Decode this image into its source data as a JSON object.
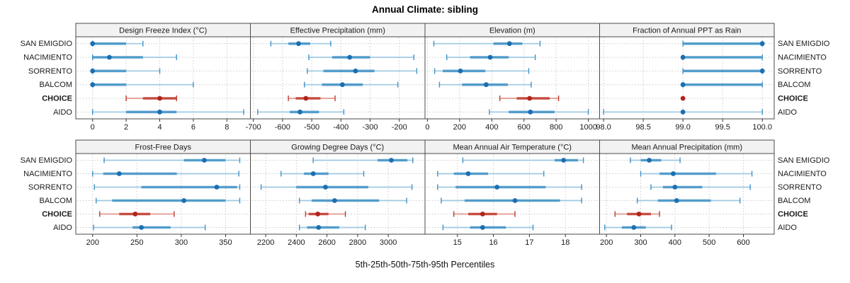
{
  "title": "Annual Climate: sibling",
  "caption": "5th-25th-50th-75th-95th Percentiles",
  "sites": [
    "SAN EMIGDIO",
    "NACIMIENTO",
    "SORRENTO",
    "BALCOM",
    "CHOICE",
    "AIDO"
  ],
  "highlight_site": "CHOICE",
  "colors": {
    "median_dot": "#1b6fb0",
    "iqr_bar": "#4292c6",
    "range_line": "#9ec9e2",
    "highlight_median_dot": "#b0241c",
    "highlight_iqr_bar": "#c0392b",
    "highlight_range_line": "#e2978e",
    "header_bg": "#f2f2f2",
    "panel_border": "#4a4a4a",
    "grid": "#cbcbcb",
    "text": "#1a1a1a"
  },
  "chart_data": [
    {
      "type": "scatter",
      "variant": "percentile-intervals",
      "title": "Design Freeze Index (°C)",
      "row": 0,
      "col": 0,
      "xlim": [
        -1,
        9.4
      ],
      "ticks": [
        0,
        2,
        4,
        6,
        8
      ],
      "tick_labels": [
        "0",
        "2",
        "4",
        "6",
        "8"
      ],
      "percentile_labels": [
        "5th",
        "25th",
        "50th",
        "75th",
        "95th"
      ],
      "series": [
        {
          "name": "SAN EMIGDIO",
          "percentiles": [
            0,
            0,
            0,
            2,
            3
          ]
        },
        {
          "name": "NACIMIENTO",
          "percentiles": [
            0,
            0,
            1,
            3,
            5
          ]
        },
        {
          "name": "SORRENTO",
          "percentiles": [
            0,
            0,
            0,
            2,
            4
          ]
        },
        {
          "name": "BALCOM",
          "percentiles": [
            0,
            0,
            0,
            2,
            6
          ]
        },
        {
          "name": "CHOICE",
          "percentiles": [
            2,
            3,
            4,
            5,
            5
          ]
        },
        {
          "name": "AIDO",
          "percentiles": [
            0,
            2,
            4,
            5,
            9
          ]
        }
      ]
    },
    {
      "type": "scatter",
      "variant": "percentile-intervals",
      "title": "Effective Precipitation (mm)",
      "row": 0,
      "col": 1,
      "xlim": [
        -710,
        -112
      ],
      "ticks": [
        -700,
        -600,
        -500,
        -400,
        -300,
        -200
      ],
      "tick_labels": [
        "-700",
        "-600",
        "-500",
        "-400",
        "-300",
        "-200"
      ],
      "percentile_labels": [
        "5th",
        "25th",
        "50th",
        "75th",
        "95th"
      ],
      "series": [
        {
          "name": "SAN EMIGDIO",
          "percentiles": [
            -640,
            -580,
            -545,
            -505,
            -435
          ]
        },
        {
          "name": "NACIMIENTO",
          "percentiles": [
            -510,
            -430,
            -370,
            -300,
            -150
          ]
        },
        {
          "name": "SORRENTO",
          "percentiles": [
            -515,
            -460,
            -350,
            -285,
            -140
          ]
        },
        {
          "name": "BALCOM",
          "percentiles": [
            -525,
            -465,
            -395,
            -325,
            -205
          ]
        },
        {
          "name": "CHOICE",
          "percentiles": [
            -580,
            -555,
            -520,
            -470,
            -420
          ]
        },
        {
          "name": "AIDO",
          "percentiles": [
            -685,
            -575,
            -540,
            -475,
            -390
          ]
        }
      ]
    },
    {
      "type": "scatter",
      "variant": "percentile-intervals",
      "title": "Elevation (m)",
      "row": 0,
      "col": 2,
      "xlim": [
        -15,
        1070
      ],
      "ticks": [
        0,
        200,
        400,
        600,
        800,
        1000
      ],
      "tick_labels": [
        "0",
        "200",
        "400",
        "600",
        "800",
        "1000"
      ],
      "percentile_labels": [
        "5th",
        "25th",
        "50th",
        "75th",
        "95th"
      ],
      "series": [
        {
          "name": "SAN EMIGDIO",
          "percentiles": [
            40,
            410,
            510,
            590,
            700
          ]
        },
        {
          "name": "NACIMIENTO",
          "percentiles": [
            120,
            265,
            390,
            505,
            670
          ]
        },
        {
          "name": "SORRENTO",
          "percentiles": [
            45,
            95,
            205,
            360,
            630
          ]
        },
        {
          "name": "BALCOM",
          "percentiles": [
            75,
            215,
            365,
            500,
            645
          ]
        },
        {
          "name": "CHOICE",
          "percentiles": [
            450,
            555,
            635,
            760,
            815
          ]
        },
        {
          "name": "AIDO",
          "percentiles": [
            385,
            505,
            640,
            790,
            1000
          ]
        }
      ]
    },
    {
      "type": "scatter",
      "variant": "percentile-intervals",
      "title": "Fraction of Annual PPT as Rain",
      "row": 0,
      "col": 3,
      "xlim": [
        97.95,
        100.15
      ],
      "ticks": [
        98.0,
        98.5,
        99.0,
        99.5,
        100.0
      ],
      "tick_labels": [
        "98.0",
        "98.5",
        "99.0",
        "99.5",
        "100.0"
      ],
      "percentile_labels": [
        "5th",
        "25th",
        "50th",
        "75th",
        "95th"
      ],
      "series": [
        {
          "name": "SAN EMIGDIO",
          "percentiles": [
            99,
            99,
            100,
            100,
            100
          ]
        },
        {
          "name": "NACIMIENTO",
          "percentiles": [
            99,
            99,
            99,
            100,
            100
          ]
        },
        {
          "name": "SORRENTO",
          "percentiles": [
            99,
            99,
            100,
            100,
            100
          ]
        },
        {
          "name": "BALCOM",
          "percentiles": [
            99,
            99,
            99,
            100,
            100
          ]
        },
        {
          "name": "CHOICE",
          "percentiles": [
            99,
            99,
            99,
            99,
            99
          ]
        },
        {
          "name": "AIDO",
          "percentiles": [
            98,
            99,
            99,
            99,
            100
          ]
        }
      ]
    },
    {
      "type": "scatter",
      "variant": "percentile-intervals",
      "title": "Frost-Free Days",
      "row": 1,
      "col": 0,
      "xlim": [
        181,
        378
      ],
      "ticks": [
        200,
        250,
        300,
        350
      ],
      "tick_labels": [
        "200",
        "250",
        "300",
        "350"
      ],
      "percentile_labels": [
        "5th",
        "25th",
        "50th",
        "75th",
        "95th"
      ],
      "series": [
        {
          "name": "SAN EMIGDIO",
          "percentiles": [
            213,
            303,
            326,
            350,
            366
          ]
        },
        {
          "name": "NACIMIENTO",
          "percentiles": [
            200,
            212,
            230,
            295,
            365
          ]
        },
        {
          "name": "SORRENTO",
          "percentiles": [
            202,
            255,
            340,
            363,
            366
          ]
        },
        {
          "name": "BALCOM",
          "percentiles": [
            204,
            222,
            303,
            350,
            366
          ]
        },
        {
          "name": "CHOICE",
          "percentiles": [
            208,
            230,
            248,
            265,
            292
          ]
        },
        {
          "name": "AIDO",
          "percentiles": [
            201,
            245,
            255,
            288,
            327
          ]
        }
      ]
    },
    {
      "type": "scatter",
      "variant": "percentile-intervals",
      "title": "Growing Degree Days (°C)",
      "row": 1,
      "col": 1,
      "xlim": [
        2100,
        3240
      ],
      "ticks": [
        2200,
        2400,
        2600,
        2800,
        3000
      ],
      "tick_labels": [
        "2200",
        "2400",
        "2600",
        "2800",
        "3000"
      ],
      "percentile_labels": [
        "5th",
        "25th",
        "50th",
        "75th",
        "95th"
      ],
      "series": [
        {
          "name": "SAN EMIGDIO",
          "percentiles": [
            2510,
            2930,
            3020,
            3125,
            3160
          ]
        },
        {
          "name": "NACIMIENTO",
          "percentiles": [
            2300,
            2450,
            2510,
            2610,
            2840
          ]
        },
        {
          "name": "SORRENTO",
          "percentiles": [
            2170,
            2400,
            2590,
            2870,
            3155
          ]
        },
        {
          "name": "BALCOM",
          "percentiles": [
            2420,
            2500,
            2650,
            2940,
            3120
          ]
        },
        {
          "name": "CHOICE",
          "percentiles": [
            2460,
            2480,
            2540,
            2610,
            2720
          ]
        },
        {
          "name": "AIDO",
          "percentiles": [
            2420,
            2470,
            2545,
            2680,
            2850
          ]
        }
      ]
    },
    {
      "type": "scatter",
      "variant": "percentile-intervals",
      "title": "Mean Annual Air Temperature (°C)",
      "row": 1,
      "col": 2,
      "xlim": [
        14.1,
        18.95
      ],
      "ticks": [
        15,
        16,
        17,
        18
      ],
      "tick_labels": [
        "15",
        "16",
        "17",
        "18"
      ],
      "percentile_labels": [
        "5th",
        "25th",
        "50th",
        "75th",
        "95th"
      ],
      "series": [
        {
          "name": "SAN EMIGDIO",
          "percentiles": [
            15.15,
            17.7,
            17.95,
            18.35,
            18.5
          ]
        },
        {
          "name": "NACIMIENTO",
          "percentiles": [
            14.45,
            14.9,
            15.3,
            15.85,
            17.4
          ]
        },
        {
          "name": "SORRENTO",
          "percentiles": [
            14.45,
            14.95,
            16.1,
            17.45,
            18.45
          ]
        },
        {
          "name": "BALCOM",
          "percentiles": [
            14.55,
            15.2,
            16.6,
            17.85,
            18.45
          ]
        },
        {
          "name": "CHOICE",
          "percentiles": [
            14.9,
            15.3,
            15.7,
            16.1,
            16.6
          ]
        },
        {
          "name": "AIDO",
          "percentiles": [
            14.6,
            15.35,
            15.7,
            16.35,
            17.1
          ]
        }
      ]
    },
    {
      "type": "scatter",
      "variant": "percentile-intervals",
      "title": "Mean Annual Precipitation (mm)",
      "row": 1,
      "col": 3,
      "xlim": [
        180,
        690
      ],
      "ticks": [
        200,
        300,
        400,
        500,
        600
      ],
      "tick_labels": [
        "200",
        "300",
        "400",
        "500",
        "600"
      ],
      "percentile_labels": [
        "5th",
        "25th",
        "50th",
        "75th",
        "95th"
      ],
      "series": [
        {
          "name": "SAN EMIGDIO",
          "percentiles": [
            270,
            300,
            325,
            360,
            415
          ]
        },
        {
          "name": "NACIMIENTO",
          "percentiles": [
            300,
            355,
            395,
            520,
            625
          ]
        },
        {
          "name": "SORRENTO",
          "percentiles": [
            330,
            365,
            400,
            480,
            620
          ]
        },
        {
          "name": "BALCOM",
          "percentiles": [
            290,
            350,
            405,
            505,
            590
          ]
        },
        {
          "name": "CHOICE",
          "percentiles": [
            225,
            260,
            295,
            330,
            355
          ]
        },
        {
          "name": "AIDO",
          "percentiles": [
            195,
            245,
            280,
            315,
            390
          ]
        }
      ]
    }
  ]
}
